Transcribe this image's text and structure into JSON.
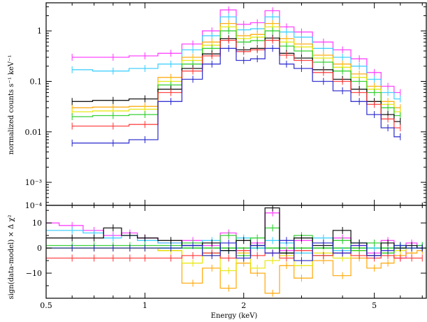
{
  "chart_data": [
    {
      "type": "line",
      "panel": "spectrum",
      "xlabel": "",
      "ylabel": "normalized counts s⁻¹ keV⁻¹",
      "x_scale": "log",
      "y_scale": "log",
      "xlim": [
        0.5,
        7.2
      ],
      "ylim": [
        0.00035,
        3.6
      ],
      "y_ticks": [
        {
          "value": 1,
          "label": "1"
        },
        {
          "value": 0.1,
          "label": "0.1"
        },
        {
          "value": 0.01,
          "label": "0.01"
        },
        {
          "value": 0.001,
          "label": "10⁻³"
        },
        {
          "value": 0.0001,
          "label": "10⁻⁴"
        }
      ],
      "series": [
        {
          "color": "#ff33ff",
          "x": [
            0.6,
            0.8,
            1.0,
            1.2,
            1.4,
            1.6,
            1.8,
            2.0,
            2.2,
            2.45,
            2.7,
            3.0,
            3.5,
            4.0,
            4.5,
            5.0,
            5.5,
            6.0
          ],
          "y": [
            0.3,
            0.3,
            0.32,
            0.36,
            0.55,
            1.0,
            2.6,
            1.35,
            1.45,
            2.5,
            1.2,
            0.95,
            0.6,
            0.42,
            0.28,
            0.15,
            0.08,
            0.06
          ]
        },
        {
          "color": "#33ccff",
          "x": [
            0.6,
            0.8,
            1.0,
            1.2,
            1.4,
            1.6,
            1.8,
            2.0,
            2.2,
            2.45,
            2.7,
            3.0,
            3.5,
            4.0,
            4.5,
            5.0,
            5.5,
            6.0
          ],
          "y": [
            0.17,
            0.16,
            0.18,
            0.22,
            0.42,
            0.8,
            1.9,
            1.05,
            1.1,
            1.9,
            0.95,
            0.75,
            0.45,
            0.3,
            0.2,
            0.11,
            0.06,
            0.045
          ]
        },
        {
          "color": "#ffa500",
          "x": [
            0.6,
            0.8,
            1.0,
            1.2,
            1.4,
            1.6,
            1.8,
            2.0,
            2.2,
            2.45,
            2.7,
            3.0,
            3.5,
            4.0,
            4.5,
            5.0,
            5.5,
            6.0
          ],
          "y": [
            0.03,
            0.031,
            0.032,
            0.12,
            0.3,
            0.6,
            1.4,
            0.8,
            0.85,
            1.4,
            0.7,
            0.55,
            0.33,
            0.22,
            0.14,
            0.08,
            0.04,
            0.03
          ]
        },
        {
          "color": "#e6e600",
          "x": [
            0.6,
            0.8,
            1.0,
            1.2,
            1.4,
            1.6,
            1.8,
            2.0,
            2.2,
            2.45,
            2.7,
            3.0,
            3.5,
            4.0,
            4.5,
            5.0,
            5.5,
            6.0
          ],
          "y": [
            0.025,
            0.026,
            0.028,
            0.1,
            0.26,
            0.52,
            1.2,
            0.7,
            0.75,
            1.2,
            0.6,
            0.48,
            0.29,
            0.19,
            0.12,
            0.07,
            0.035,
            0.025
          ]
        },
        {
          "color": "#22cc22",
          "x": [
            0.6,
            0.8,
            1.0,
            1.2,
            1.4,
            1.6,
            1.8,
            2.0,
            2.2,
            2.45,
            2.7,
            3.0,
            3.5,
            4.0,
            4.5,
            5.0,
            5.5,
            6.0
          ],
          "y": [
            0.02,
            0.021,
            0.022,
            0.085,
            0.22,
            0.45,
            1.0,
            0.6,
            0.64,
            1.0,
            0.5,
            0.4,
            0.24,
            0.16,
            0.1,
            0.06,
            0.03,
            0.021
          ]
        },
        {
          "color": "#000000",
          "x": [
            0.6,
            0.8,
            1.0,
            1.2,
            1.4,
            1.6,
            1.8,
            2.0,
            2.2,
            2.45,
            2.7,
            3.0,
            3.5,
            4.0,
            4.5,
            5.0,
            5.5,
            6.0
          ],
          "y": [
            0.04,
            0.042,
            0.045,
            0.07,
            0.18,
            0.35,
            0.7,
            0.42,
            0.45,
            0.72,
            0.36,
            0.29,
            0.17,
            0.11,
            0.07,
            0.04,
            0.022,
            0.016
          ]
        },
        {
          "color": "#ff3333",
          "x": [
            0.6,
            0.8,
            1.0,
            1.2,
            1.4,
            1.6,
            1.8,
            2.0,
            2.2,
            2.45,
            2.7,
            3.0,
            3.5,
            4.0,
            4.5,
            5.0,
            5.5,
            6.0
          ],
          "y": [
            0.013,
            0.013,
            0.014,
            0.06,
            0.16,
            0.32,
            0.65,
            0.39,
            0.42,
            0.65,
            0.33,
            0.26,
            0.15,
            0.1,
            0.06,
            0.035,
            0.018,
            0.012
          ]
        },
        {
          "color": "#2222cc",
          "x": [
            0.6,
            0.8,
            1.0,
            1.2,
            1.4,
            1.6,
            1.8,
            2.0,
            2.2,
            2.45,
            2.7,
            3.0,
            3.5,
            4.0,
            4.5,
            5.0,
            5.5,
            6.0
          ],
          "y": [
            0.006,
            0.006,
            0.007,
            0.04,
            0.11,
            0.22,
            0.45,
            0.26,
            0.28,
            0.45,
            0.22,
            0.18,
            0.1,
            0.065,
            0.04,
            0.022,
            0.012,
            0.008
          ]
        }
      ]
    },
    {
      "type": "line",
      "panel": "residuals",
      "xlabel": "Energy (keV)",
      "ylabel": "sign(data-model) × Δ χ²",
      "x_scale": "log",
      "xlim": [
        0.5,
        7.2
      ],
      "ylim": [
        -20,
        17
      ],
      "x_ticks": [
        {
          "value": 0.5,
          "label": "0.5"
        },
        {
          "value": 1,
          "label": "1"
        },
        {
          "value": 2,
          "label": "2"
        },
        {
          "value": 5,
          "label": "5"
        }
      ],
      "y_ticks": [
        {
          "value": 10,
          "label": "10"
        },
        {
          "value": 0,
          "label": "0"
        },
        {
          "value": -10,
          "label": "−10"
        }
      ],
      "series": [
        {
          "color": "#ff33ff",
          "x": [
            0.5,
            0.6,
            0.7,
            0.8,
            0.9,
            1.0,
            1.2,
            1.4,
            1.6,
            1.8,
            2.0,
            2.2,
            2.45,
            2.7,
            3.0,
            3.5,
            4.0,
            4.5,
            5.0,
            5.5,
            6.0,
            6.5,
            7.0
          ],
          "y": [
            10,
            9,
            7,
            5,
            6,
            4,
            2,
            3,
            1,
            6,
            -2,
            2,
            14,
            -1,
            3,
            -3,
            4,
            1,
            -2,
            3,
            -4,
            2,
            0
          ]
        },
        {
          "color": "#33ccff",
          "x": [
            0.5,
            0.6,
            0.7,
            0.8,
            0.9,
            1.0,
            1.2,
            1.4,
            1.6,
            1.8,
            2.0,
            2.2,
            2.45,
            2.7,
            3.0,
            3.5,
            4.0,
            4.5,
            5.0,
            5.5,
            6.0,
            6.5,
            7.0
          ],
          "y": [
            7,
            7,
            6,
            4,
            5,
            3,
            2,
            1,
            3,
            -1,
            4,
            0,
            3,
            2,
            -2,
            4,
            -1,
            2,
            0,
            -2,
            1,
            0,
            1
          ]
        },
        {
          "color": "#ffa500",
          "x": [
            0.5,
            0.6,
            0.7,
            0.8,
            0.9,
            1.0,
            1.2,
            1.4,
            1.6,
            1.8,
            2.0,
            2.2,
            2.45,
            2.7,
            3.0,
            3.5,
            4.0,
            4.5,
            5.0,
            5.5,
            6.0,
            6.5,
            7.0
          ],
          "y": [
            0,
            0,
            0,
            0,
            0,
            0,
            -1,
            -14,
            -8,
            -16,
            -6,
            -10,
            -18,
            -7,
            -12,
            -5,
            -11,
            -4,
            -8,
            -6,
            -3,
            -2,
            -1
          ]
        },
        {
          "color": "#e6e600",
          "x": [
            0.5,
            0.6,
            0.7,
            0.8,
            0.9,
            1.0,
            1.2,
            1.4,
            1.6,
            1.8,
            2.0,
            2.2,
            2.45,
            2.7,
            3.0,
            3.5,
            4.0,
            4.5,
            5.0,
            5.5,
            6.0,
            6.5,
            7.0
          ],
          "y": [
            0,
            0,
            0,
            0,
            0,
            0,
            -1,
            -6,
            -3,
            -9,
            -2,
            -8,
            -5,
            -3,
            -7,
            -2,
            -4,
            -1,
            -3,
            -2,
            -1,
            0,
            0
          ]
        },
        {
          "color": "#22cc22",
          "x": [
            0.5,
            0.6,
            0.7,
            0.8,
            0.9,
            1.0,
            1.2,
            1.4,
            1.6,
            1.8,
            2.0,
            2.2,
            2.45,
            2.7,
            3.0,
            3.5,
            4.0,
            4.5,
            5.0,
            5.5,
            6.0,
            6.5,
            7.0
          ],
          "y": [
            1,
            1,
            1,
            1,
            1,
            1,
            1,
            2,
            -2,
            5,
            -3,
            4,
            8,
            -2,
            5,
            -3,
            3,
            -1,
            2,
            -2,
            1,
            0,
            1
          ]
        },
        {
          "color": "#000000",
          "x": [
            0.5,
            0.6,
            0.7,
            0.8,
            0.9,
            1.0,
            1.2,
            1.4,
            1.6,
            1.8,
            2.0,
            2.2,
            2.45,
            2.7,
            3.0,
            3.5,
            4.0,
            4.5,
            5.0,
            5.5,
            6.0,
            6.5,
            7.0
          ],
          "y": [
            4,
            4,
            4,
            8,
            5,
            4,
            3,
            1,
            2,
            -1,
            3,
            1,
            16,
            -2,
            4,
            1,
            7,
            2,
            -3,
            2,
            0,
            1,
            0
          ]
        },
        {
          "color": "#ff3333",
          "x": [
            0.5,
            0.6,
            0.7,
            0.8,
            0.9,
            1.0,
            1.2,
            1.4,
            1.6,
            1.8,
            2.0,
            2.2,
            2.45,
            2.7,
            3.0,
            3.5,
            4.0,
            4.5,
            5.0,
            5.5,
            6.0,
            6.5,
            7.0
          ],
          "y": [
            -4,
            -4,
            -4,
            -4,
            -4,
            -4,
            -4,
            -3,
            -2,
            -4,
            -1,
            -3,
            -2,
            -4,
            -1,
            -3,
            -2,
            -3,
            -4,
            -3,
            -4,
            -4,
            -4
          ]
        },
        {
          "color": "#2222cc",
          "x": [
            0.5,
            0.6,
            0.7,
            0.8,
            0.9,
            1.0,
            1.2,
            1.4,
            1.6,
            1.8,
            2.0,
            2.2,
            2.45,
            2.7,
            3.0,
            3.5,
            4.0,
            4.5,
            5.0,
            5.5,
            6.0,
            6.5,
            7.0
          ],
          "y": [
            0,
            0,
            0,
            0,
            0,
            0,
            0,
            1,
            -3,
            2,
            -4,
            1,
            -2,
            3,
            -5,
            2,
            -2,
            1,
            -3,
            -1,
            1,
            0,
            0
          ]
        }
      ]
    }
  ]
}
